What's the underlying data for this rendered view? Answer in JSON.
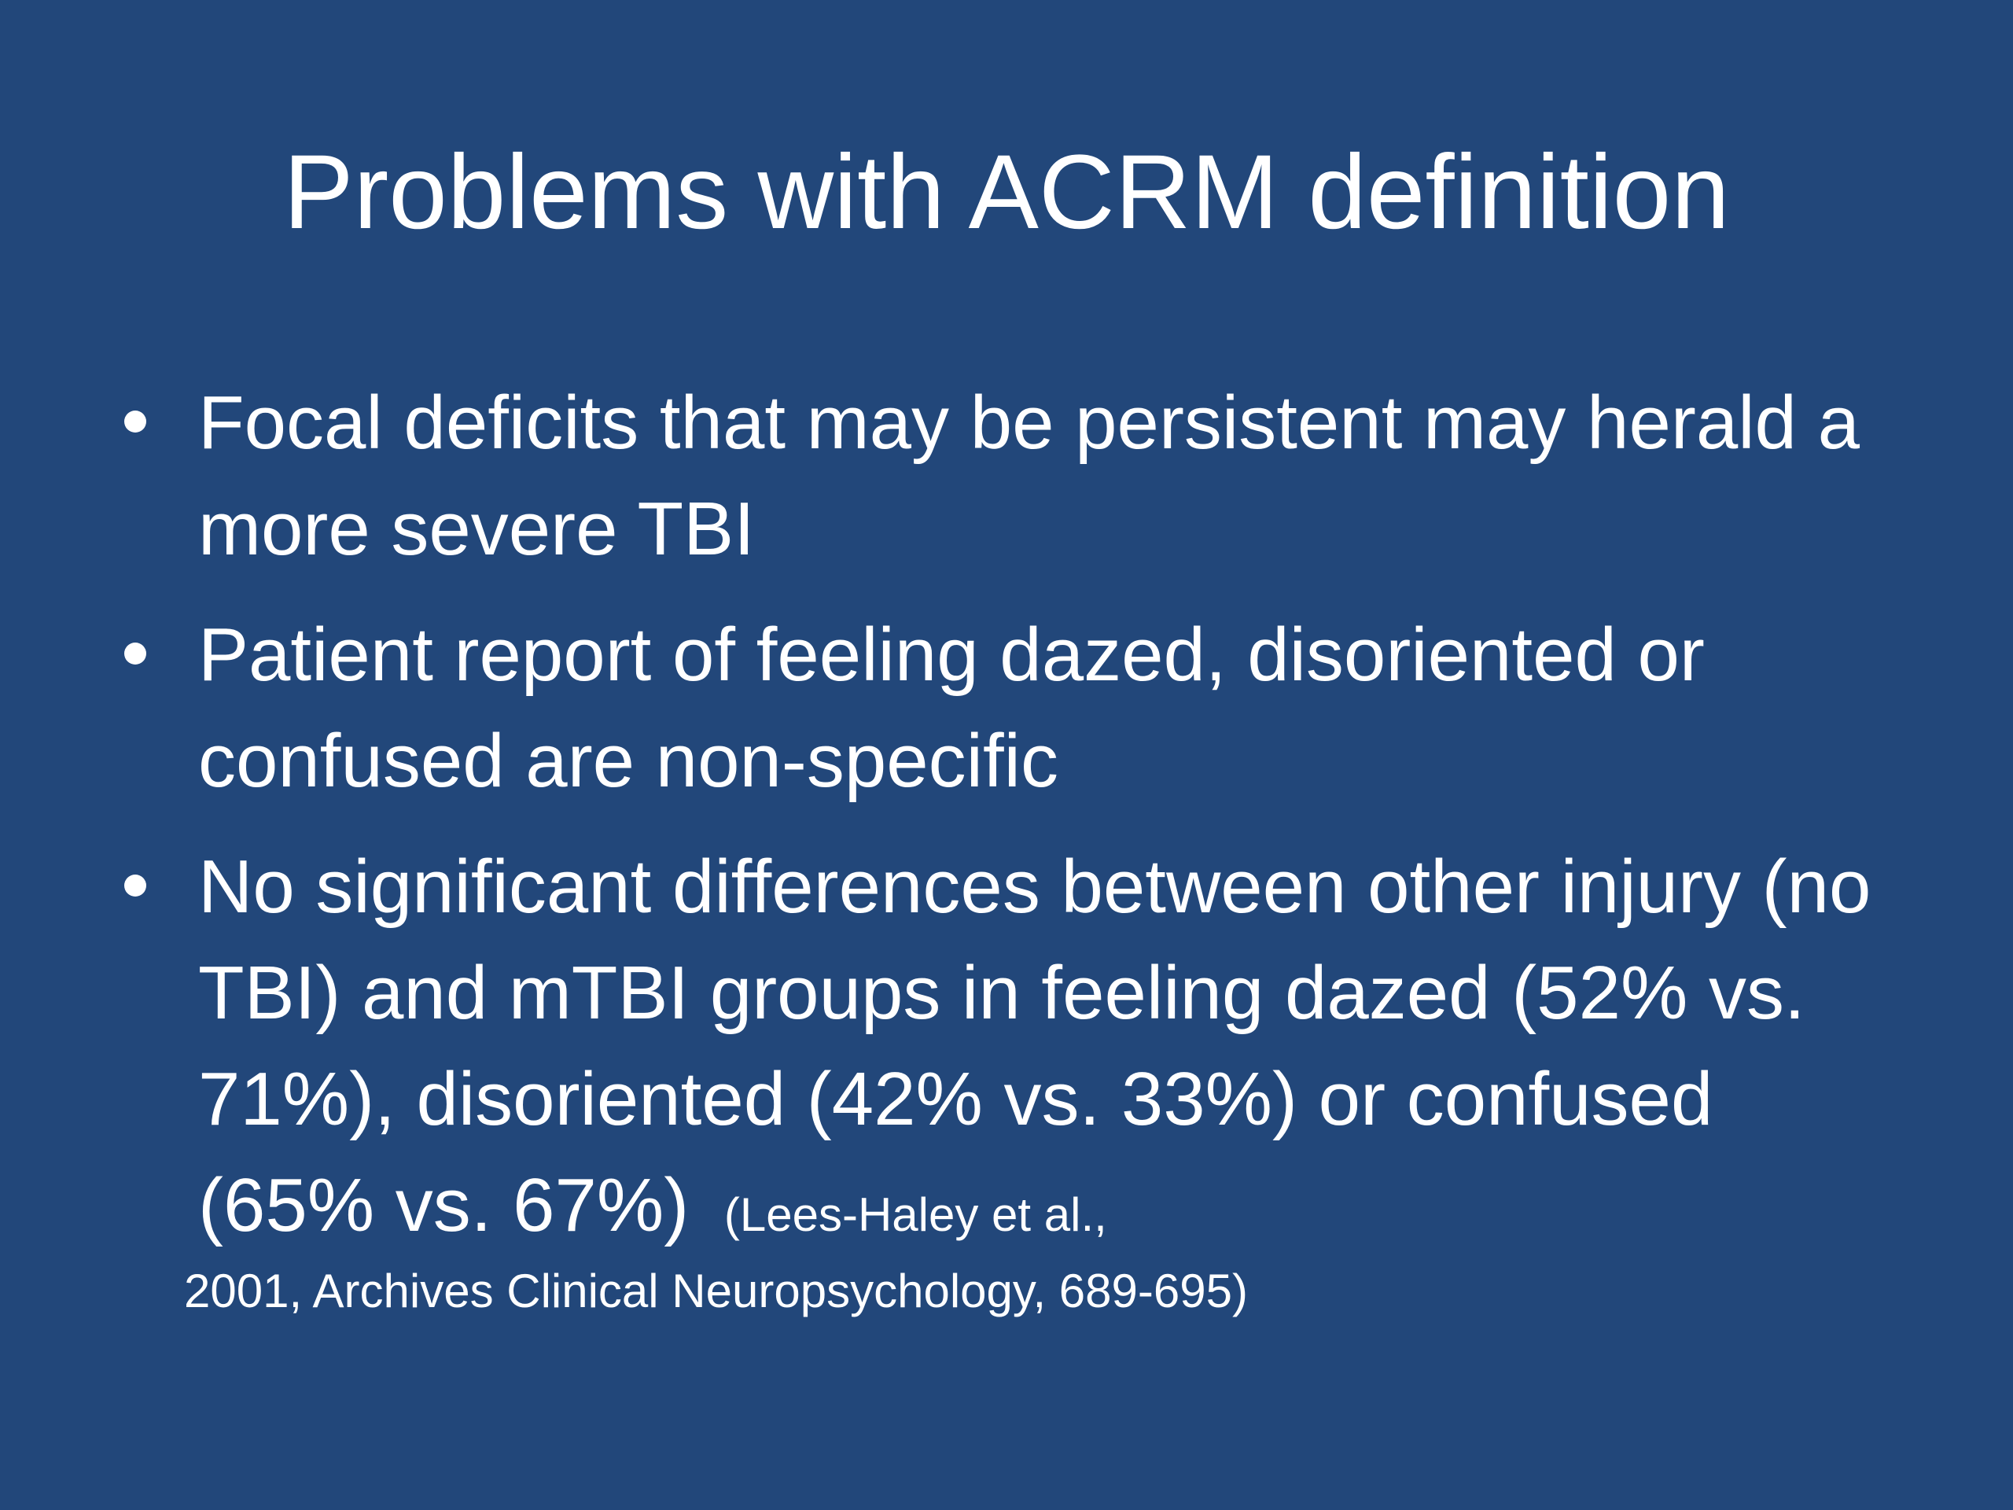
{
  "slide": {
    "title": "Problems with ACRM definition",
    "background_color": "#22477a",
    "text_color": "#ffffff",
    "bullets": [
      {
        "text": "Focal deficits that may be persistent may herald a more severe TBI"
      },
      {
        "text": "Patient report of feeling dazed, disoriented or confused are non-specific"
      },
      {
        "text": "No significant differences between other injury (no TBI) and mTBI groups in feeling dazed (52% vs. 71%), disoriented (42% vs. 33%) or confused (65% vs. 67%)",
        "citation_part1": "(Lees-Haley et al.,",
        "citation_part2": "2001, Archives Clinical Neuropsychology, 689-695)"
      }
    ]
  }
}
